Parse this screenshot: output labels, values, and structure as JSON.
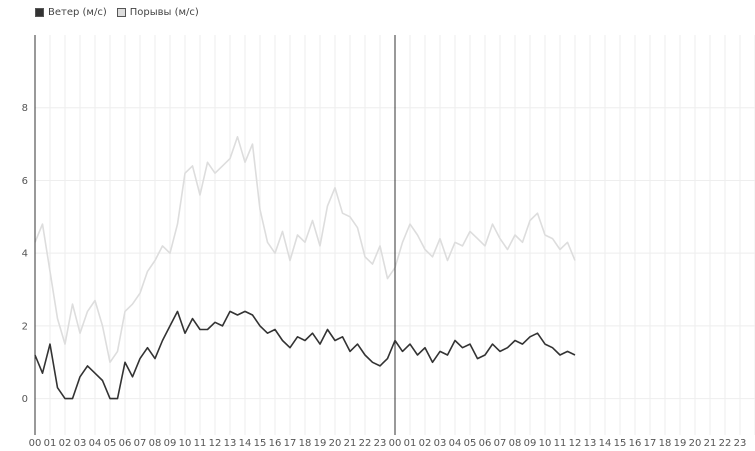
{
  "chart_data": {
    "type": "line",
    "title": "",
    "xlabel": "",
    "ylabel": "",
    "ylim": [
      -1,
      10
    ],
    "y_ticks": [
      0,
      2,
      4,
      6,
      8
    ],
    "x_tick_labels": [
      "00",
      "01",
      "02",
      "03",
      "04",
      "05",
      "06",
      "07",
      "08",
      "09",
      "10",
      "11",
      "12",
      "13",
      "14",
      "15",
      "16",
      "17",
      "18",
      "19",
      "20",
      "21",
      "22",
      "23",
      "00",
      "01",
      "02",
      "03",
      "04",
      "05",
      "06",
      "07",
      "08",
      "09",
      "10",
      "11",
      "12",
      "13",
      "14",
      "15",
      "16",
      "17",
      "18",
      "19",
      "20",
      "21",
      "22",
      "23"
    ],
    "x_range_hours": [
      0,
      48
    ],
    "day_boundary_hours": [
      0,
      24
    ],
    "grid": true,
    "legend": "top-left",
    "series": [
      {
        "name": "Ветер (м/с)",
        "color": "#333333",
        "x_hours": [
          0,
          0.5,
          1,
          1.5,
          2,
          2.5,
          3,
          3.5,
          4,
          4.5,
          5,
          5.5,
          6,
          6.5,
          7,
          7.5,
          8,
          8.5,
          9,
          9.5,
          10,
          10.5,
          11,
          11.5,
          12,
          12.5,
          13,
          13.5,
          14,
          14.5,
          15,
          15.5,
          16,
          16.5,
          17,
          17.5,
          18,
          18.5,
          19,
          19.5,
          20,
          20.5,
          21,
          21.5,
          22,
          22.5,
          23,
          23.5,
          24,
          24.5,
          25,
          25.5,
          26,
          26.5,
          27,
          27.5,
          28,
          28.5,
          29,
          29.5,
          30,
          30.5,
          31,
          31.5,
          32,
          32.5,
          33,
          33.5,
          34,
          34.5,
          35,
          35.5,
          36
        ],
        "values": [
          1.2,
          0.7,
          1.5,
          0.3,
          0,
          0,
          0.6,
          0.9,
          0.7,
          0.5,
          0,
          0,
          1.0,
          0.6,
          1.1,
          1.4,
          1.1,
          1.6,
          2.0,
          2.4,
          1.8,
          2.2,
          1.9,
          1.9,
          2.1,
          2.0,
          2.4,
          2.3,
          2.4,
          2.3,
          2.0,
          1.8,
          1.9,
          1.6,
          1.4,
          1.7,
          1.6,
          1.8,
          1.5,
          1.9,
          1.6,
          1.7,
          1.3,
          1.5,
          1.2,
          1.0,
          0.9,
          1.1,
          1.6,
          1.3,
          1.5,
          1.2,
          1.4,
          1.0,
          1.3,
          1.2,
          1.6,
          1.4,
          1.5,
          1.1,
          1.2,
          1.5,
          1.3,
          1.4,
          1.6,
          1.5,
          1.7,
          1.8,
          1.5,
          1.4,
          1.2,
          1.3,
          1.2
        ]
      },
      {
        "name": "Порывы (м/с)",
        "color": "#dddddd",
        "x_hours": [
          0,
          0.5,
          1,
          1.5,
          2,
          2.5,
          3,
          3.5,
          4,
          4.5,
          5,
          5.5,
          6,
          6.5,
          7,
          7.5,
          8,
          8.5,
          9,
          9.5,
          10,
          10.5,
          11,
          11.5,
          12,
          12.5,
          13,
          13.5,
          14,
          14.5,
          15,
          15.5,
          16,
          16.5,
          17,
          17.5,
          18,
          18.5,
          19,
          19.5,
          20,
          20.5,
          21,
          21.5,
          22,
          22.5,
          23,
          23.5,
          24,
          24.5,
          25,
          25.5,
          26,
          26.5,
          27,
          27.5,
          28,
          28.5,
          29,
          29.5,
          30,
          30.5,
          31,
          31.5,
          32,
          32.5,
          33,
          33.5,
          34,
          34.5,
          35,
          35.5,
          36
        ],
        "values": [
          4.3,
          4.8,
          3.5,
          2.2,
          1.5,
          2.6,
          1.8,
          2.4,
          2.7,
          2.0,
          1.0,
          1.3,
          2.4,
          2.6,
          2.9,
          3.5,
          3.8,
          4.2,
          4.0,
          4.8,
          6.2,
          6.4,
          5.6,
          6.5,
          6.2,
          6.4,
          6.6,
          7.2,
          6.5,
          7.0,
          5.2,
          4.3,
          4.0,
          4.6,
          3.8,
          4.5,
          4.3,
          4.9,
          4.2,
          5.3,
          5.8,
          5.1,
          5.0,
          4.7,
          3.9,
          3.7,
          4.2,
          3.3,
          3.6,
          4.3,
          4.8,
          4.5,
          4.1,
          3.9,
          4.4,
          3.8,
          4.3,
          4.2,
          4.6,
          4.4,
          4.2,
          4.8,
          4.4,
          4.1,
          4.5,
          4.3,
          4.9,
          5.1,
          4.5,
          4.4,
          4.1,
          4.3,
          3.8
        ]
      }
    ]
  }
}
